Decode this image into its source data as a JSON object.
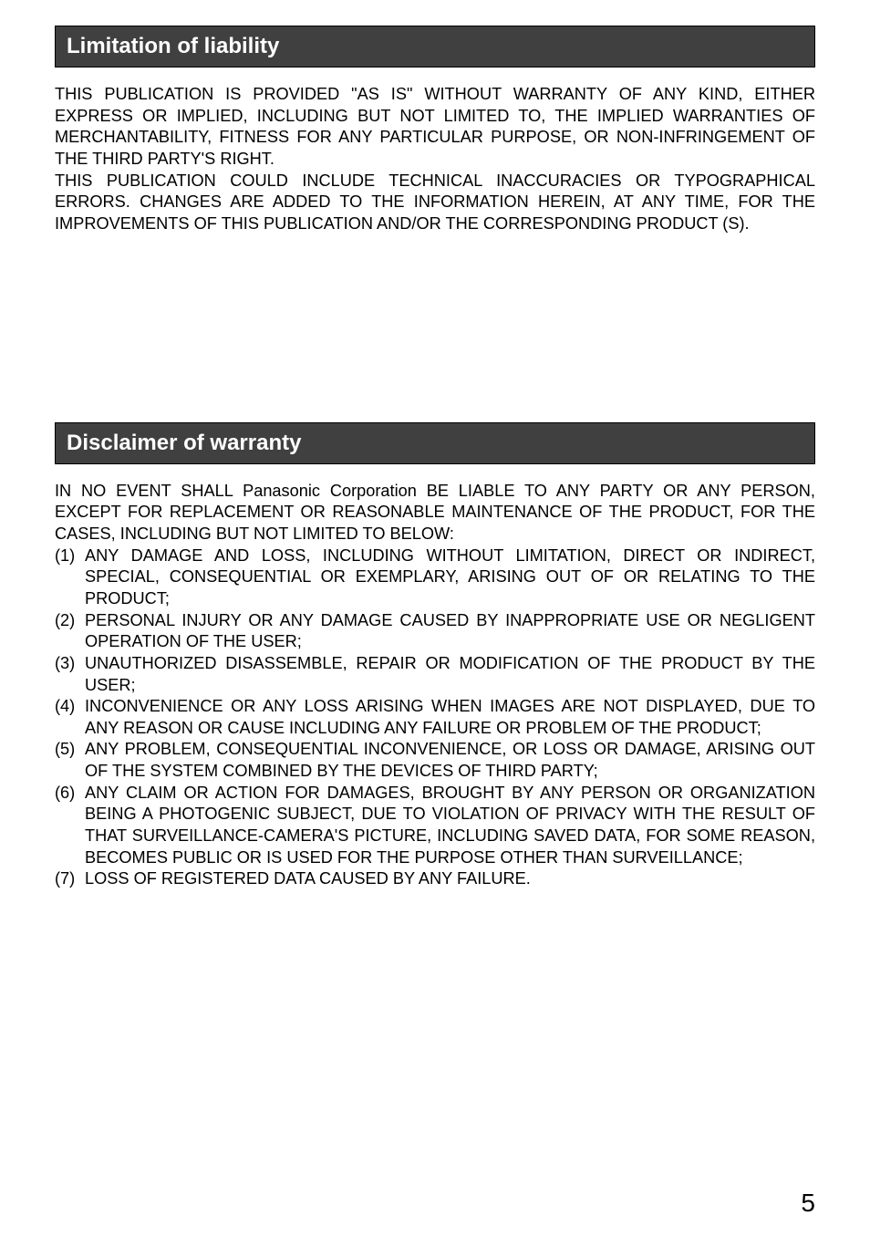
{
  "page": {
    "number": "5",
    "background_color": "#ffffff",
    "text_color": "#000000",
    "header_bg_color": "#404040",
    "header_text_color": "#ffffff",
    "body_fontsize": 18,
    "header_fontsize": 24,
    "pagenum_fontsize": 28
  },
  "section1": {
    "title": "Limitation of liability",
    "para1": "THIS PUBLICATION IS PROVIDED \"AS IS\" WITHOUT WARRANTY OF ANY KIND, EITHER EXPRESS OR IMPLIED, INCLUDING BUT NOT LIMITED TO, THE IMPLIED WARRANTIES OF MERCHANTABILITY, FITNESS FOR ANY PARTICULAR PURPOSE, OR NON-INFRINGEMENT OF THE THIRD PARTY'S RIGHT.",
    "para2": "THIS PUBLICATION COULD INCLUDE TECHNICAL INACCURACIES OR TYPOGRAPHICAL ERRORS. CHANGES ARE ADDED TO THE INFORMATION HEREIN, AT ANY TIME, FOR THE IMPROVEMENTS OF THIS PUBLICATION AND/OR THE CORRESPONDING PRODUCT (S)."
  },
  "section2": {
    "title": "Disclaimer of warranty",
    "intro": "IN NO EVENT SHALL Panasonic Corporation BE LIABLE TO ANY PARTY OR ANY PERSON, EXCEPT FOR REPLACEMENT OR REASONABLE MAINTENANCE OF THE PRODUCT, FOR THE CASES, INCLUDING BUT NOT LIMITED TO BELOW:",
    "items": [
      {
        "num": "(1)",
        "text": "ANY DAMAGE AND LOSS, INCLUDING WITHOUT LIMITATION, DIRECT OR INDIRECT, SPECIAL, CONSEQUENTIAL OR EXEMPLARY, ARISING OUT OF OR RELATING TO THE PRODUCT;"
      },
      {
        "num": "(2)",
        "text": "PERSONAL INJURY OR ANY DAMAGE CAUSED BY INAPPROPRIATE USE OR NEGLIGENT OPERATION OF THE USER;"
      },
      {
        "num": "(3)",
        "text": "UNAUTHORIZED DISASSEMBLE, REPAIR OR MODIFICATION OF THE PRODUCT BY THE USER;"
      },
      {
        "num": "(4)",
        "text": "INCONVENIENCE OR ANY LOSS ARISING WHEN IMAGES ARE NOT DISPLAYED, DUE TO ANY REASON OR CAUSE INCLUDING ANY FAILURE OR PROBLEM OF THE PRODUCT;"
      },
      {
        "num": "(5)",
        "text": "ANY PROBLEM, CONSEQUENTIAL INCONVENIENCE, OR LOSS OR DAMAGE, ARISING OUT OF THE SYSTEM COMBINED BY THE DEVICES OF THIRD PARTY;"
      },
      {
        "num": "(6)",
        "text": " ANY CLAIM OR ACTION FOR DAMAGES, BROUGHT BY ANY PERSON OR ORGANIZATION BEING A PHOTOGENIC SUBJECT, DUE TO VIOLATION OF PRIVACY WITH THE RESULT OF THAT SURVEILLANCE-CAMERA'S PICTURE, INCLUDING SAVED DATA, FOR SOME REASON, BECOMES PUBLIC OR IS USED FOR THE PURPOSE OTHER THAN SURVEILLANCE;"
      },
      {
        "num": "(7)",
        "text": "LOSS OF REGISTERED DATA CAUSED BY ANY FAILURE."
      }
    ]
  }
}
